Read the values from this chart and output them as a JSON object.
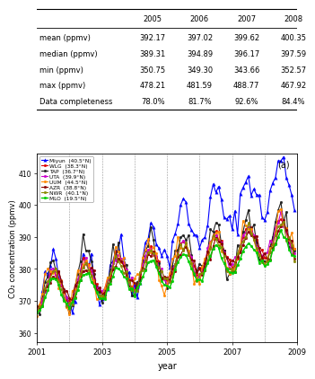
{
  "table": {
    "columns": [
      "",
      "2005",
      "2006",
      "2007",
      "2008"
    ],
    "rows": [
      [
        "mean (ppmv)",
        "392.17",
        "397.02",
        "399.62",
        "400.35"
      ],
      [
        "median (ppmv)",
        "389.31",
        "394.89",
        "396.17",
        "397.59"
      ],
      [
        "min (ppmv)",
        "350.75",
        "349.30",
        "343.66",
        "352.57"
      ],
      [
        "max (ppmv)",
        "478.21",
        "481.59",
        "488.77",
        "467.92"
      ],
      [
        "Data completeness",
        "78.0%",
        "81.7%",
        "92.6%",
        "84.4%"
      ]
    ]
  },
  "stations": [
    {
      "name": "Miyun",
      "lat": "40.5°N",
      "color": "#0000ff",
      "marker": "^",
      "lw": 0.8,
      "ms": 2.5
    },
    {
      "name": "WLG",
      "lat": "38.3°N",
      "color": "#dd0000",
      "marker": "o",
      "lw": 0.8,
      "ms": 2.0
    },
    {
      "name": "TAP",
      "lat": "36.7°N",
      "color": "#222222",
      "marker": "o",
      "lw": 0.8,
      "ms": 2.0
    },
    {
      "name": "UTA",
      "lat": "39.9°N",
      "color": "#cc00cc",
      "marker": "o",
      "lw": 0.8,
      "ms": 2.0
    },
    {
      "name": "UUM",
      "lat": "44.5°N",
      "color": "#ff8800",
      "marker": "o",
      "lw": 0.8,
      "ms": 2.0
    },
    {
      "name": "AZR",
      "lat": "38.8°N",
      "color": "#880000",
      "marker": "o",
      "lw": 0.8,
      "ms": 2.0
    },
    {
      "name": "NWR",
      "lat": "40.1°N",
      "color": "#888800",
      "marker": "o",
      "lw": 0.8,
      "ms": 2.0
    },
    {
      "name": "MLO",
      "lat": "19.5°N",
      "color": "#00cc00",
      "marker": "o",
      "lw": 1.0,
      "ms": 2.0
    }
  ],
  "ylim": [
    357,
    416
  ],
  "yticks": [
    360,
    370,
    380,
    390,
    400,
    410
  ],
  "xlabel": "year",
  "ylabel": "CO₂ concentration (ppmv)",
  "panel_label": "(a)",
  "background_color": "#ffffff"
}
